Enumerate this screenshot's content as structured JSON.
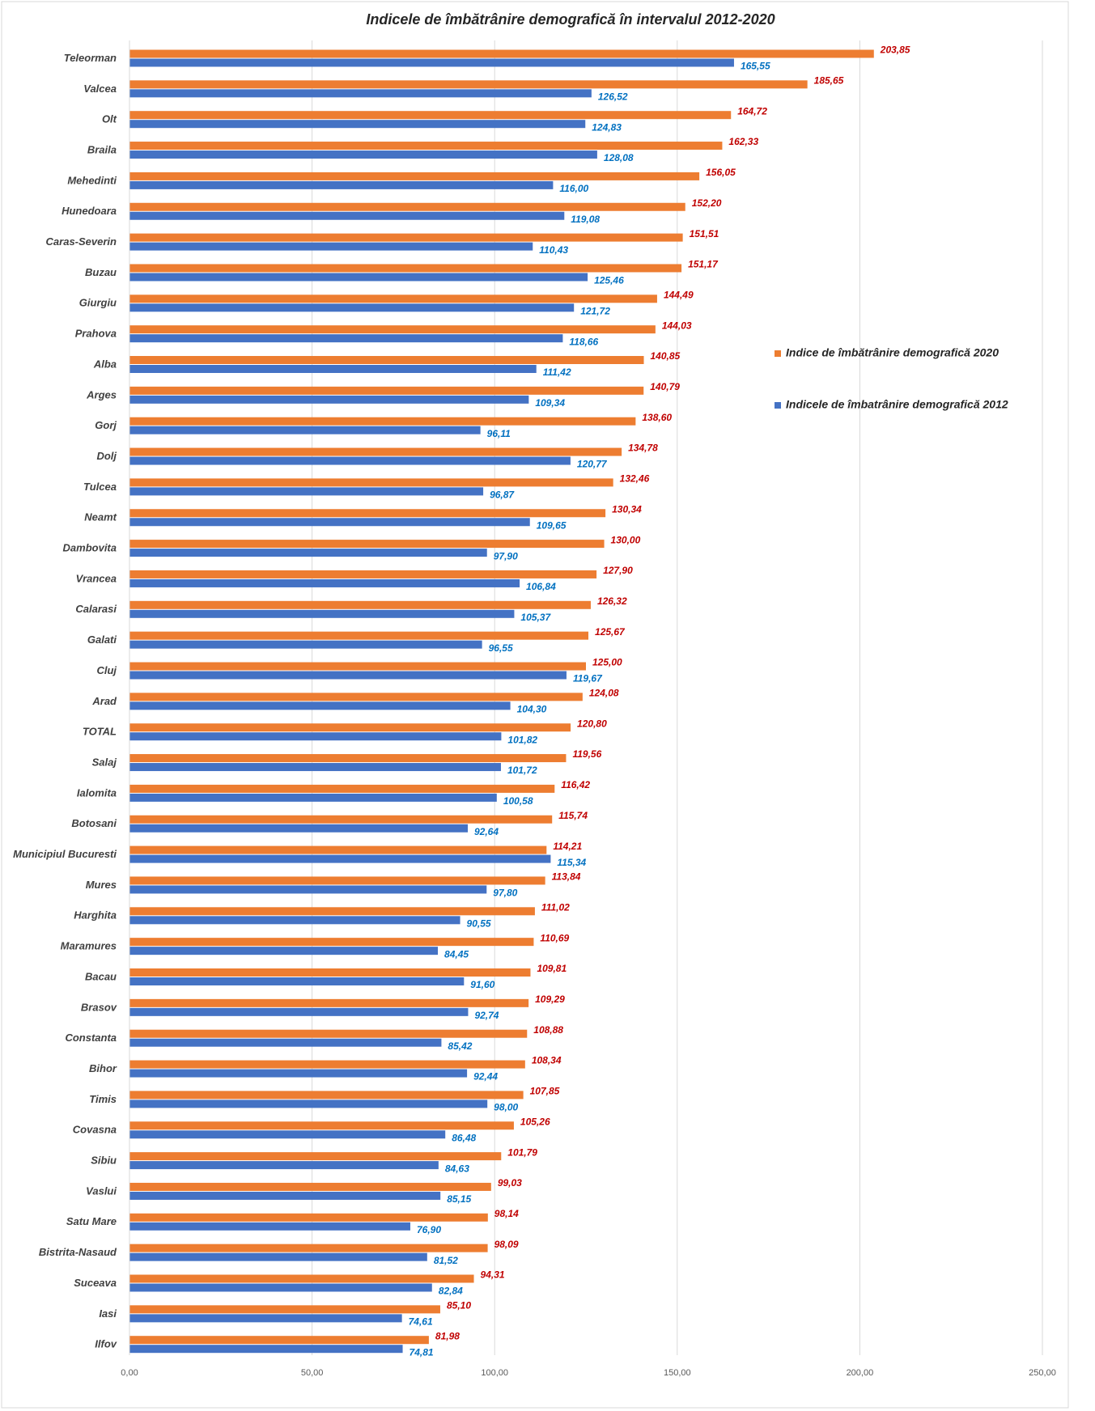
{
  "chart_data": {
    "type": "hbar",
    "title": "Indicele de îmbătrânire  demografică în intervalul 2012-2020",
    "categories": [
      "Teleorman",
      "Valcea",
      "Olt",
      "Braila",
      "Mehedinti",
      "Hunedoara",
      "Caras-Severin",
      "Buzau",
      "Giurgiu",
      "Prahova",
      "Alba",
      "Arges",
      "Gorj",
      "Dolj",
      "Tulcea",
      "Neamt",
      "Dambovita",
      "Vrancea",
      "Calarasi",
      "Galati",
      "Cluj",
      "Arad",
      "TOTAL",
      "Salaj",
      "Ialomita",
      "Botosani",
      "Municipiul Bucuresti",
      "Mures",
      "Harghita",
      "Maramures",
      "Bacau",
      "Brasov",
      "Constanta",
      "Bihor",
      "Timis",
      "Covasna",
      "Sibiu",
      "Vaslui",
      "Satu Mare",
      "Bistrita-Nasaud",
      "Suceava",
      "Iasi",
      "Ilfov"
    ],
    "series": [
      {
        "name": "Indice de îmbătrânire demografică 2020",
        "color": "#ed7d31",
        "label_color": "#c00000",
        "values": [
          203.85,
          185.65,
          164.72,
          162.33,
          156.05,
          152.2,
          151.51,
          151.17,
          144.49,
          144.03,
          140.85,
          140.79,
          138.6,
          134.78,
          132.46,
          130.34,
          130.0,
          127.9,
          126.32,
          125.67,
          125.0,
          124.08,
          120.8,
          119.56,
          116.42,
          115.74,
          114.21,
          113.84,
          111.02,
          110.69,
          109.81,
          109.29,
          108.88,
          108.34,
          107.85,
          105.26,
          101.79,
          99.03,
          98.14,
          98.09,
          94.31,
          85.1,
          81.98
        ],
        "value_labels": [
          "203,85",
          "185,65",
          "164,72",
          "162,33",
          "156,05",
          "152,20",
          "151,51",
          "151,17",
          "144,49",
          "144,03",
          "140,85",
          "140,79",
          "138,60",
          "134,78",
          "132,46",
          "130,34",
          "130,00",
          "127,90",
          "126,32",
          "125,67",
          "125,00",
          "124,08",
          "120,80",
          "119,56",
          "116,42",
          "115,74",
          "114,21",
          "113,84",
          "111,02",
          "110,69",
          "109,81",
          "109,29",
          "108,88",
          "108,34",
          "107,85",
          "105,26",
          "101,79",
          "99,03",
          "98,14",
          "98,09",
          "94,31",
          "85,10",
          "81,98"
        ]
      },
      {
        "name": "Indicele de îmbatrânire demografică 2012",
        "color": "#4472c4",
        "label_color": "#0070c0",
        "values": [
          165.55,
          126.52,
          124.83,
          128.08,
          116.0,
          119.08,
          110.43,
          125.46,
          121.72,
          118.66,
          111.42,
          109.34,
          96.11,
          120.77,
          96.87,
          109.65,
          97.9,
          106.84,
          105.37,
          96.55,
          119.67,
          104.3,
          101.82,
          101.72,
          100.58,
          92.64,
          115.34,
          97.8,
          90.55,
          84.45,
          91.6,
          92.74,
          85.42,
          92.44,
          98.0,
          86.48,
          84.63,
          85.15,
          76.9,
          81.52,
          82.84,
          74.61,
          74.81
        ],
        "value_labels": [
          "165,55",
          "126,52",
          "124,83",
          "128,08",
          "116,00",
          "119,08",
          "110,43",
          "125,46",
          "121,72",
          "118,66",
          "111,42",
          "109,34",
          "96,11",
          "120,77",
          "96,87",
          "109,65",
          "97,90",
          "106,84",
          "105,37",
          "96,55",
          "119,67",
          "104,30",
          "101,82",
          "101,72",
          "100,58",
          "92,64",
          "115,34",
          "97,80",
          "90,55",
          "84,45",
          "91,60",
          "92,74",
          "85,42",
          "92,44",
          "98,00",
          "86,48",
          "84,63",
          "85,15",
          "76,90",
          "81,52",
          "82,84",
          "74,61",
          "74,81"
        ]
      }
    ],
    "xlim": [
      0,
      250
    ],
    "xticks": [
      {
        "value": 0,
        "label": "0,00"
      },
      {
        "value": 50,
        "label": "50,00"
      },
      {
        "value": 100,
        "label": "100,00"
      },
      {
        "value": 150,
        "label": "150,00"
      },
      {
        "value": 200,
        "label": "200,00"
      },
      {
        "value": 250,
        "label": "250,00"
      }
    ],
    "grid": true,
    "legend": "right"
  }
}
